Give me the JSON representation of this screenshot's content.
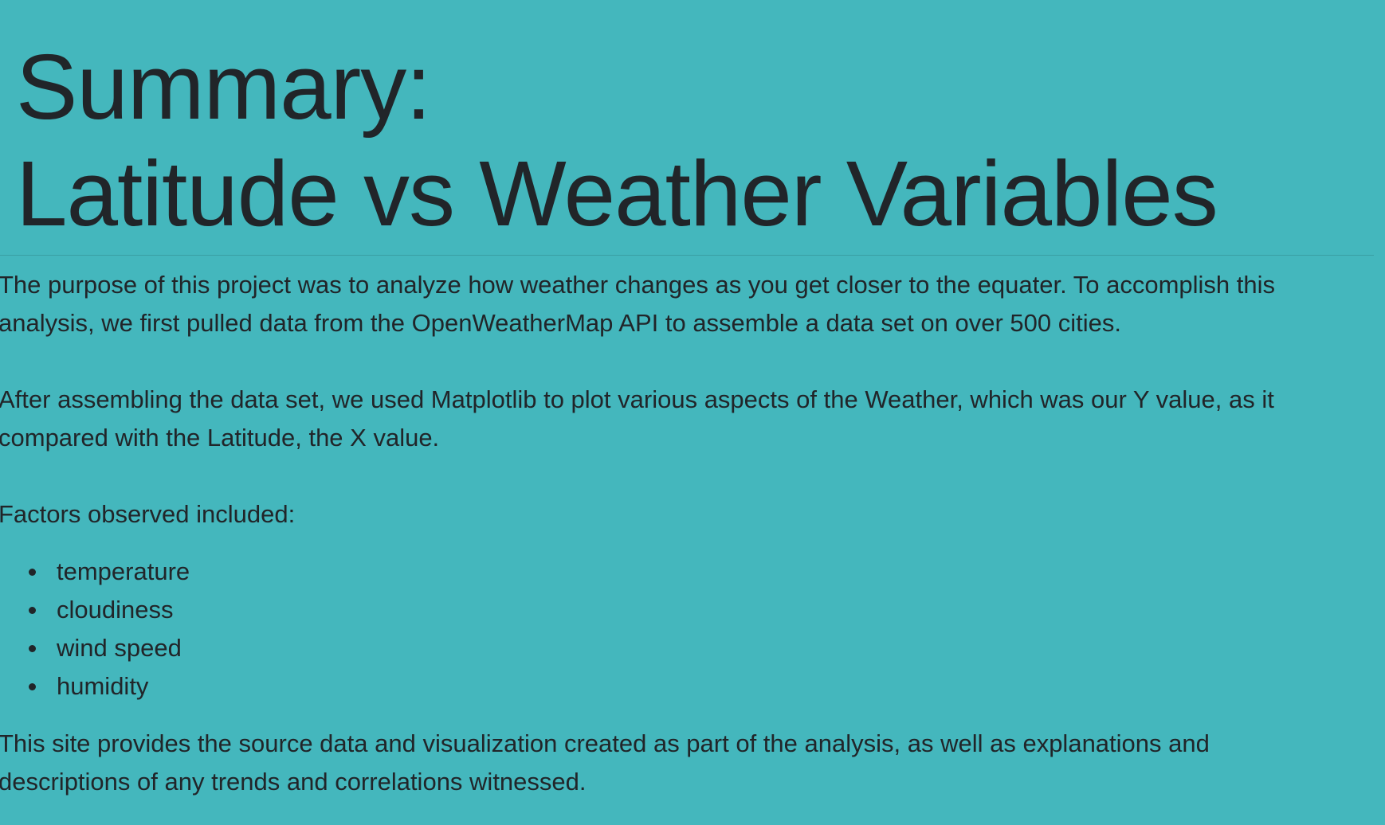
{
  "header": {
    "title_line1": "Summary:",
    "title_line2": "Latitude vs Weather Variables"
  },
  "content": {
    "intro_line1": "The purpose of this project was to analyze how weather changes as you get closer to the equater. To accomplish this",
    "intro_line2": "analysis, we first pulled data from the OpenWeatherMap API to assemble a data set on over 500 cities.",
    "method_line1": "After assembling the data set, we used Matplotlib to plot various aspects of the Weather, which was our Y value, as it",
    "method_line2": "compared with the Latitude, the X value.",
    "factors_label": "Factors observed included:",
    "factors": [
      "temperature",
      "cloudiness",
      "wind speed",
      "humidity"
    ],
    "closing_line1": "This site provides the source data and visualization created as part of the analysis, as well as explanations and",
    "closing_line2": "descriptions of any trends and correlations witnessed."
  },
  "colors": {
    "background": "#44b7bd",
    "text": "#212529"
  }
}
